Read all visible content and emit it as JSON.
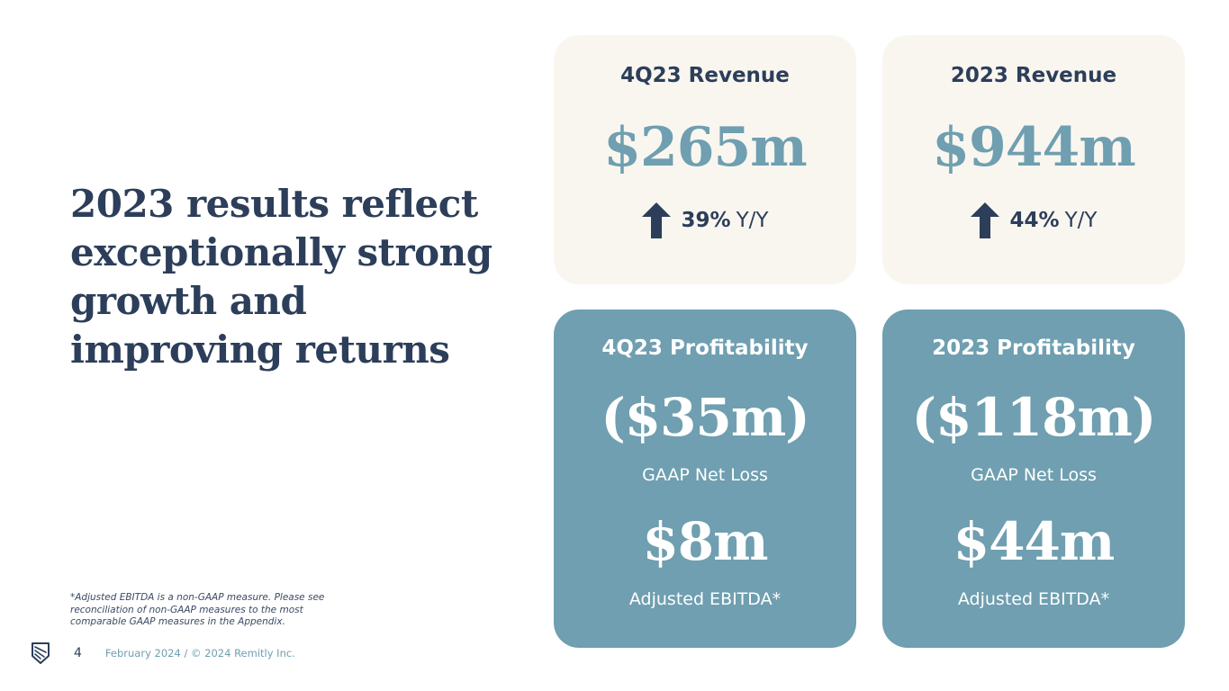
{
  "headline": "2023 results reflect exceptionally strong growth and improving returns",
  "footnote": "*Adjusted EBITDA is a non-GAAP measure. Please see reconciliation of non-GAAP measures to the most comparable GAAP measures in the Appendix.",
  "footer": {
    "page_number": "4",
    "copyright": "February 2024 / © 2024 Remitly Inc.",
    "logo_icon": "remitly-logo-icon"
  },
  "colors": {
    "navy": "#2c3e5a",
    "teal": "#6f9fb0",
    "cream": "#f9f6f0",
    "white": "#ffffff"
  },
  "cards": {
    "q4_revenue": {
      "title": "4Q23 Revenue",
      "value": "$265m",
      "growth_pct": "39%",
      "growth_label": "Y/Y",
      "icon": "arrow-up-icon"
    },
    "fy_revenue": {
      "title": "2023 Revenue",
      "value": "$944m",
      "growth_pct": "44%",
      "growth_label": "Y/Y",
      "icon": "arrow-up-icon"
    },
    "q4_profit": {
      "title": "4Q23 Profitability",
      "net_loss_value": "($35m)",
      "net_loss_label": "GAAP Net Loss",
      "ebitda_value": "$8m",
      "ebitda_label": "Adjusted EBITDA*"
    },
    "fy_profit": {
      "title": "2023 Profitability",
      "net_loss_value": "($118m)",
      "net_loss_label": "GAAP Net Loss",
      "ebitda_value": "$44m",
      "ebitda_label": "Adjusted EBITDA*"
    }
  }
}
